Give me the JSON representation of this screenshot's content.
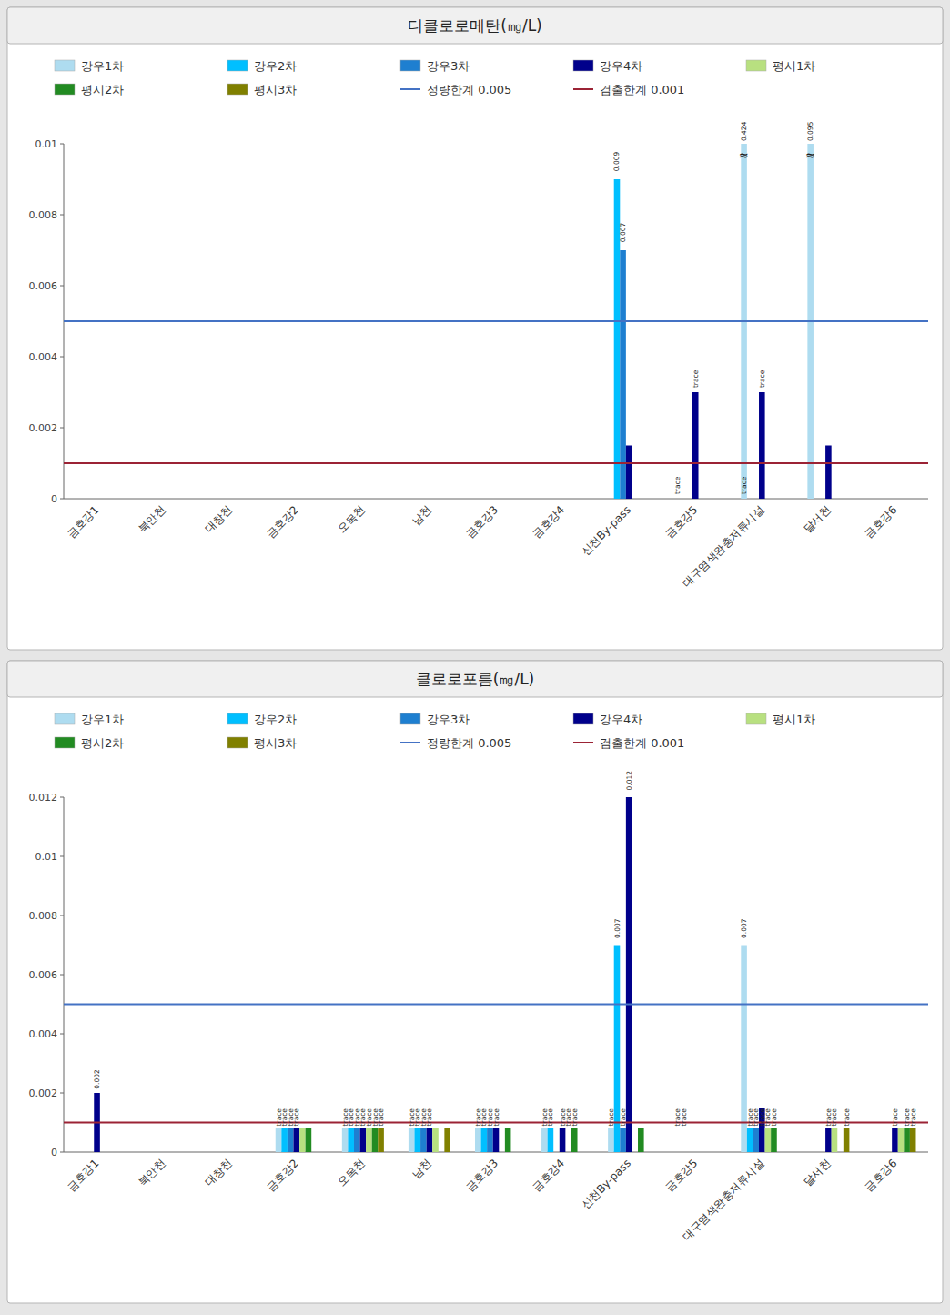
{
  "chart_data": [
    {
      "type": "bar",
      "title": "디클로로메탄(㎎/L)",
      "categories": [
        "금호강1",
        "북안천",
        "대창천",
        "금호강2",
        "오목천",
        "남천",
        "금호강3",
        "금호강4",
        "신천By-pass",
        "금호강5",
        "대구염색완충저류시설",
        "달서천",
        "금호강6"
      ],
      "ylim": [
        0,
        0.01
      ],
      "yticks": [
        0,
        0.002,
        0.004,
        0.006,
        0.008,
        0.01
      ],
      "grid": false,
      "legend": "top",
      "series": [
        {
          "name": "강우1차",
          "color": "#AEDCF0",
          "values": [
            0,
            0,
            0,
            0,
            0,
            0,
            0,
            0,
            0,
            0,
            0.01,
            0.01,
            0
          ]
        },
        {
          "name": "강우2차",
          "color": "#00BFFF",
          "values": [
            0,
            0,
            0,
            0,
            0,
            0,
            0,
            0,
            0.009,
            0,
            0,
            0,
            0
          ]
        },
        {
          "name": "강우3차",
          "color": "#1E7FD0",
          "values": [
            0,
            0,
            0,
            0,
            0,
            0,
            0,
            0,
            0.007,
            0,
            0,
            0,
            0
          ]
        },
        {
          "name": "강우4차",
          "color": "#00008B",
          "values": [
            0,
            0,
            0,
            0,
            0,
            0,
            0,
            0,
            0.0015,
            0.003,
            0.003,
            0.0015,
            0
          ]
        },
        {
          "name": "평시1차",
          "color": "#B8E080",
          "values": [
            0,
            0,
            0,
            0,
            0,
            0,
            0,
            0,
            0,
            0,
            0,
            0,
            0
          ]
        },
        {
          "name": "평시2차",
          "color": "#228B22",
          "values": [
            0,
            0,
            0,
            0,
            0,
            0,
            0,
            0,
            0,
            0,
            0,
            0,
            0
          ]
        },
        {
          "name": "평시3차",
          "color": "#808000",
          "values": [
            0,
            0,
            0,
            0,
            0,
            0,
            0,
            0,
            0,
            0,
            0,
            0,
            0
          ]
        }
      ],
      "reference_lines": [
        {
          "name": "정량한계 0.005",
          "value": 0.005,
          "color": "#4472C4"
        },
        {
          "name": "검출한계 0.001",
          "value": 0.001,
          "color": "#9B2335"
        }
      ],
      "annotations": [
        {
          "text": "0.009",
          "x": "신천By-pass",
          "series": "강우2차",
          "y": 0.0092
        },
        {
          "text": "0.007",
          "x": "신천By-pass",
          "series": "강우3차",
          "y": 0.0072
        },
        {
          "text": "trace",
          "x": "금호강5",
          "series": "강우1차",
          "y": 0.0001
        },
        {
          "text": "trace",
          "x": "금호강5",
          "series": "강우4차",
          "y": 0.0031
        },
        {
          "text": "0.424",
          "x": "대구염색완충저류시설",
          "series": "강우1차",
          "y": 0.01005
        },
        {
          "text": "≈",
          "x": "대구염색완충저류시설",
          "series": "강우1차",
          "y": 0.00968
        },
        {
          "text": "trace",
          "x": "대구염색완충저류시설",
          "series": "강우1차",
          "y": 0.0001
        },
        {
          "text": "trace",
          "x": "대구염색완충저류시설",
          "series": "강우4차",
          "y": 0.0031
        },
        {
          "text": "0.095",
          "x": "달서천",
          "series": "강우1차",
          "y": 0.01005
        },
        {
          "text": "≈",
          "x": "달서천",
          "series": "강우1차",
          "y": 0.00968
        }
      ]
    },
    {
      "type": "bar",
      "title": "클로로포름(㎎/L)",
      "categories": [
        "금호강1",
        "북안천",
        "대창천",
        "금호강2",
        "오목천",
        "남천",
        "금호강3",
        "금호강4",
        "신천By-pass",
        "금호강5",
        "대구염색완충저류시설",
        "달서천",
        "금호강6"
      ],
      "ylim": [
        0,
        0.012
      ],
      "yticks": [
        0,
        0.002,
        0.004,
        0.006,
        0.008,
        0.01,
        0.012
      ],
      "grid": false,
      "legend": "top",
      "series": [
        {
          "name": "강우1차",
          "color": "#AEDCF0",
          "values": [
            0,
            0,
            0,
            0.0008,
            0.0008,
            0.0008,
            0.0008,
            0.0008,
            0.0008,
            0,
            0.007,
            0,
            0
          ]
        },
        {
          "name": "강우2차",
          "color": "#00BFFF",
          "values": [
            0,
            0,
            0,
            0.0008,
            0.0008,
            0.0008,
            0.0008,
            0.0008,
            0.007,
            0,
            0.0008,
            0,
            0
          ]
        },
        {
          "name": "강우3차",
          "color": "#1E7FD0",
          "values": [
            0,
            0,
            0,
            0.0008,
            0.0008,
            0.0008,
            0.0008,
            0,
            0.0008,
            0,
            0.0008,
            0,
            0
          ]
        },
        {
          "name": "강우4차",
          "color": "#00008B",
          "values": [
            0.002,
            0,
            0,
            0.0008,
            0.0008,
            0.0008,
            0.0008,
            0.0008,
            0.012,
            0,
            0.0015,
            0.0008,
            0.0008
          ]
        },
        {
          "name": "평시1차",
          "color": "#B8E080",
          "values": [
            0,
            0,
            0,
            0.0008,
            0.0008,
            0.0008,
            0,
            0,
            0,
            0,
            0.0008,
            0.0008,
            0.0008
          ]
        },
        {
          "name": "평시2차",
          "color": "#228B22",
          "values": [
            0,
            0,
            0,
            0.0008,
            0.0008,
            0,
            0.0008,
            0.0008,
            0.0008,
            0,
            0.0008,
            0,
            0.0008
          ]
        },
        {
          "name": "평시3차",
          "color": "#808000",
          "values": [
            0,
            0,
            0,
            0,
            0.0008,
            0.0008,
            0,
            0,
            0,
            0,
            0,
            0.0008,
            0.0008
          ]
        }
      ],
      "reference_lines": [
        {
          "name": "정량한계 0.005",
          "value": 0.005,
          "color": "#4472C4"
        },
        {
          "name": "검출한계 0.001",
          "value": 0.001,
          "color": "#9B2335"
        }
      ],
      "annotations": [
        {
          "text": "0.002",
          "x": "금호강1",
          "series": "강우4차",
          "y": 0.0021
        },
        {
          "text": "trace",
          "x": "금호강2",
          "series": "강우1차",
          "y": 0.00085
        },
        {
          "text": "trace",
          "x": "금호강2",
          "series": "강우2차",
          "y": 0.00085
        },
        {
          "text": "trace",
          "x": "금호강2",
          "series": "강우3차",
          "y": 0.00085
        },
        {
          "text": "trace",
          "x": "금호강2",
          "series": "강우4차",
          "y": 0.00085
        },
        {
          "text": "trace",
          "x": "오목천",
          "series": "강우1차",
          "y": 0.00085
        },
        {
          "text": "trace",
          "x": "오목천",
          "series": "강우2차",
          "y": 0.00085
        },
        {
          "text": "trace",
          "x": "오목천",
          "series": "강우3차",
          "y": 0.00085
        },
        {
          "text": "trace",
          "x": "오목천",
          "series": "강우4차",
          "y": 0.00085
        },
        {
          "text": "trace",
          "x": "오목천",
          "series": "평시1차",
          "y": 0.00085
        },
        {
          "text": "trace",
          "x": "오목천",
          "series": "평시2차",
          "y": 0.00085
        },
        {
          "text": "trace",
          "x": "오목천",
          "series": "평시3차",
          "y": 0.00085
        },
        {
          "text": "trace",
          "x": "남천",
          "series": "강우1차",
          "y": 0.00085
        },
        {
          "text": "trace",
          "x": "남천",
          "series": "강우2차",
          "y": 0.00085
        },
        {
          "text": "trace",
          "x": "남천",
          "series": "강우3차",
          "y": 0.00085
        },
        {
          "text": "trace",
          "x": "남천",
          "series": "강우4차",
          "y": 0.00085
        },
        {
          "text": "trace",
          "x": "금호강3",
          "series": "강우1차",
          "y": 0.00085
        },
        {
          "text": "trace",
          "x": "금호강3",
          "series": "강우2차",
          "y": 0.00085
        },
        {
          "text": "trace",
          "x": "금호강3",
          "series": "강우3차",
          "y": 0.00085
        },
        {
          "text": "trace",
          "x": "금호강3",
          "series": "강우4차",
          "y": 0.00085
        },
        {
          "text": "trace",
          "x": "금호강4",
          "series": "강우1차",
          "y": 0.00085
        },
        {
          "text": "trace",
          "x": "금호강4",
          "series": "강우2차",
          "y": 0.00085
        },
        {
          "text": "trace",
          "x": "금호강4",
          "series": "강우4차",
          "y": 0.00085
        },
        {
          "text": "trace",
          "x": "금호강4",
          "series": "평시1차",
          "y": 0.00085
        },
        {
          "text": "trace",
          "x": "금호강4",
          "series": "평시2차",
          "y": 0.00085
        },
        {
          "text": "0.007",
          "x": "신천By-pass",
          "series": "강우2차",
          "y": 0.0072
        },
        {
          "text": "0.012",
          "x": "신천By-pass",
          "series": "강우4차",
          "y": 0.0122
        },
        {
          "text": "trace",
          "x": "신천By-pass",
          "series": "강우1차",
          "y": 0.00085
        },
        {
          "text": "trace",
          "x": "신천By-pass",
          "series": "강우3차",
          "y": 0.00085
        },
        {
          "text": "trace",
          "x": "금호강5",
          "series": "강우1차",
          "y": 0.00085
        },
        {
          "text": "trace",
          "x": "금호강5",
          "series": "강우2차",
          "y": 0.00085
        },
        {
          "text": "0.007",
          "x": "대구염색완충저류시설",
          "series": "강우1차",
          "y": 0.0072
        },
        {
          "text": "trace",
          "x": "대구염색완충저류시설",
          "series": "강우2차",
          "y": 0.00085
        },
        {
          "text": "trace",
          "x": "대구염색완충저류시설",
          "series": "강우3차",
          "y": 0.00085
        },
        {
          "text": "trace",
          "x": "대구염색완충저류시설",
          "series": "평시1차",
          "y": 0.00085
        },
        {
          "text": "trace",
          "x": "대구염색완충저류시설",
          "series": "평시2차",
          "y": 0.00085
        },
        {
          "text": "trace",
          "x": "대구염색완충저류시설",
          "series": "강우4차",
          "y": 0.00085
        },
        {
          "text": "trace",
          "x": "달서천",
          "series": "강우4차",
          "y": 0.00085
        },
        {
          "text": "trace",
          "x": "달서천",
          "series": "평시1차",
          "y": 0.00085
        },
        {
          "text": "trace",
          "x": "달서천",
          "series": "평시3차",
          "y": 0.00085
        },
        {
          "text": "trace",
          "x": "금호강6",
          "series": "강우4차",
          "y": 0.00085
        },
        {
          "text": "trace",
          "x": "금호강6",
          "series": "평시2차",
          "y": 0.00085
        },
        {
          "text": "trace",
          "x": "금호강6",
          "series": "평시3차",
          "y": 0.00085
        }
      ]
    }
  ]
}
